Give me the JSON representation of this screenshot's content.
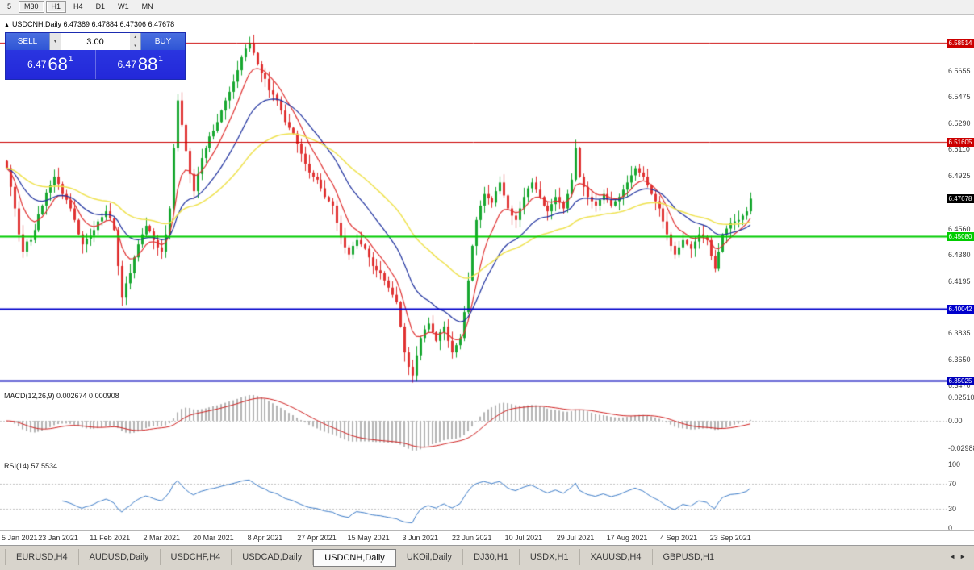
{
  "toolbar": {
    "timeframes": [
      {
        "label": "5",
        "style": ""
      },
      {
        "label": "M30",
        "style": "boxed"
      },
      {
        "label": "H1",
        "style": "boxed"
      },
      {
        "label": "H4",
        "style": ""
      },
      {
        "label": "D1",
        "style": ""
      },
      {
        "label": "W1",
        "style": ""
      },
      {
        "label": "MN",
        "style": ""
      }
    ]
  },
  "chart": {
    "toggle_glyph": "▲",
    "title": "USDCNH,Daily 6.47389 6.47884 6.47306 6.47678"
  },
  "trade_panel": {
    "sell_label": "SELL",
    "buy_label": "BUY",
    "volume": "3.00",
    "glyphs": {
      "dropdown": "▾",
      "spin_up": "▴",
      "spin_down": "▾"
    },
    "sell_price": {
      "base": "6.47",
      "big": "68",
      "pip": "1"
    },
    "buy_price": {
      "base": "6.47",
      "big": "88",
      "pip": "1"
    },
    "colors": {
      "button_bg": "#2f55d5",
      "price_bg": "#2328d9",
      "text": "#ffffff"
    }
  },
  "indicator_labels": {
    "macd": "MACD(12,26,9) 0.002674 0.000908",
    "rsi": "RSI(14) 57.5534"
  },
  "tabs": [
    {
      "label": "EURUSD,H4",
      "active": false
    },
    {
      "label": "AUDUSD,Daily",
      "active": false
    },
    {
      "label": "USDCHF,H4",
      "active": false
    },
    {
      "label": "USDCAD,Daily",
      "active": false
    },
    {
      "label": "USDCNH,Daily",
      "active": true
    },
    {
      "label": "UKOil,Daily",
      "active": false
    },
    {
      "label": "DJ30,H1",
      "active": false
    },
    {
      "label": "USDX,H1",
      "active": false
    },
    {
      "label": "XAUUSD,H4",
      "active": false
    },
    {
      "label": "GBPUSD,H1",
      "active": false
    }
  ],
  "tab_scroll": {
    "left": "◄",
    "right": "►"
  },
  "chart_data": {
    "type": "candlestick",
    "symbol": "USDCNH",
    "timeframe": "Daily",
    "title": "USDCNH,Daily",
    "current_ohlc": {
      "open": 6.47389,
      "high": 6.47884,
      "low": 6.47306,
      "close": 6.47678
    },
    "price_axis": {
      "ticks": [
        {
          "label": "6.5655",
          "price": 6.5655
        },
        {
          "label": "6.5475",
          "price": 6.5475
        },
        {
          "label": "6.5290",
          "price": 6.529
        },
        {
          "label": "6.5110",
          "price": 6.511
        },
        {
          "label": "6.4925",
          "price": 6.4925
        },
        {
          "label": "6.4560",
          "price": 6.456
        },
        {
          "label": "6.4380",
          "price": 6.438
        },
        {
          "label": "6.4195",
          "price": 6.4195
        },
        {
          "label": "6.3835",
          "price": 6.3835
        },
        {
          "label": "6.3650",
          "price": 6.365
        },
        {
          "label": "6.3470",
          "price": 6.347
        }
      ],
      "current": {
        "label": "6.47678",
        "price": 6.47678,
        "bg": "#000000"
      },
      "price_top": 6.592,
      "price_bottom": 6.344
    },
    "horizontal_levels": [
      {
        "label": "6.58514",
        "price": 6.58514,
        "color": "#cc0000",
        "width": 1
      },
      {
        "label": "6.51605",
        "price": 6.51605,
        "color": "#cc0000",
        "width": 1
      },
      {
        "label": "6.45080",
        "price": 6.4508,
        "color": "#00cc00",
        "width": 2
      },
      {
        "label": "6.40042",
        "price": 6.40042,
        "color": "#0000cc",
        "width": 2
      },
      {
        "label": "6.35025",
        "price": 6.35025,
        "color": "#0000bb",
        "width": 2
      }
    ],
    "x_labels": [
      {
        "label": "5 Jan 2021",
        "bar": 0
      },
      {
        "label": "23 Jan 2021",
        "bar": 13
      },
      {
        "label": "11 Feb 2021",
        "bar": 26
      },
      {
        "label": "2 Mar 2021",
        "bar": 39
      },
      {
        "label": "20 Mar 2021",
        "bar": 52
      },
      {
        "label": "8 Apr 2021",
        "bar": 65
      },
      {
        "label": "27 Apr 2021",
        "bar": 78
      },
      {
        "label": "15 May 2021",
        "bar": 91
      },
      {
        "label": "3 Jun 2021",
        "bar": 104
      },
      {
        "label": "22 Jun 2021",
        "bar": 117
      },
      {
        "label": "10 Jul 2021",
        "bar": 130
      },
      {
        "label": "29 Jul 2021",
        "bar": 143
      },
      {
        "label": "17 Aug 2021",
        "bar": 156
      },
      {
        "label": "4 Sep 2021",
        "bar": 169
      },
      {
        "label": "23 Sep 2021",
        "bar": 182
      }
    ],
    "closes": [
      6.498,
      6.485,
      6.47,
      6.452,
      6.44,
      6.447,
      6.448,
      6.455,
      6.466,
      6.472,
      6.481,
      6.486,
      6.492,
      6.487,
      6.48,
      6.476,
      6.47,
      6.462,
      6.452,
      6.445,
      6.449,
      6.451,
      6.455,
      6.461,
      6.464,
      6.468,
      6.463,
      6.455,
      6.43,
      6.408,
      6.418,
      6.425,
      6.436,
      6.445,
      6.452,
      6.458,
      6.454,
      6.448,
      6.443,
      6.44,
      6.452,
      6.47,
      6.512,
      6.545,
      6.528,
      6.51,
      6.494,
      6.482,
      6.494,
      6.505,
      6.512,
      6.52,
      6.524,
      6.53,
      6.538,
      6.545,
      6.551,
      6.558,
      6.566,
      6.575,
      6.581,
      6.585,
      6.578,
      6.57,
      6.564,
      6.56,
      6.552,
      6.549,
      6.545,
      6.538,
      6.53,
      6.526,
      6.522,
      6.515,
      6.508,
      6.501,
      6.495,
      6.492,
      6.49,
      6.484,
      6.478,
      6.475,
      6.472,
      6.46,
      6.45,
      6.443,
      6.438,
      6.444,
      6.448,
      6.445,
      6.442,
      6.436,
      6.43,
      6.427,
      6.425,
      6.42,
      6.415,
      6.41,
      6.405,
      6.388,
      6.37,
      6.36,
      6.354,
      6.368,
      6.38,
      6.386,
      6.39,
      6.384,
      6.378,
      6.384,
      6.388,
      6.378,
      6.37,
      6.375,
      6.38,
      6.398,
      6.42,
      6.444,
      6.462,
      6.472,
      6.48,
      6.477,
      6.474,
      6.482,
      6.488,
      6.479,
      6.47,
      6.465,
      6.462,
      6.47,
      6.478,
      6.484,
      6.488,
      6.483,
      6.478,
      6.472,
      6.468,
      6.473,
      6.478,
      6.474,
      6.47,
      6.48,
      6.49,
      6.512,
      6.492,
      6.485,
      6.478,
      6.475,
      6.472,
      6.476,
      6.48,
      6.476,
      6.472,
      6.475,
      6.478,
      6.483,
      6.488,
      6.493,
      6.498,
      6.495,
      6.492,
      6.486,
      6.48,
      6.475,
      6.47,
      6.461,
      6.452,
      6.444,
      6.438,
      6.443,
      6.448,
      6.445,
      6.442,
      6.447,
      6.452,
      6.45,
      6.448,
      6.437,
      6.428,
      6.44,
      6.452,
      6.456,
      6.46,
      6.461,
      6.462,
      6.465,
      6.468,
      6.4768
    ],
    "candle_colors": {
      "up": "#18a830",
      "down": "#e03232"
    },
    "moving_averages": [
      {
        "period": 8,
        "color": "#e03030"
      },
      {
        "period": 20,
        "color": "#1c2f9e"
      },
      {
        "period": 45,
        "color": "#efe24e"
      }
    ],
    "indicators": {
      "macd": {
        "name": "MACD",
        "params": [
          12,
          26,
          9
        ],
        "value_main": 0.002674,
        "value_signal": 0.000908,
        "histogram_color": "#b4b4b4",
        "signal_color": "#d02020",
        "ticks": [
          {
            "label": "0.02510",
            "v": 0.0251
          },
          {
            "label": "0.00",
            "v": 0
          },
          {
            "label": "-0.02988",
            "v": -0.02988
          }
        ]
      },
      "rsi": {
        "name": "RSI",
        "params": [
          14
        ],
        "value": 57.5534,
        "line_color": "#3b7bc8",
        "levels": [
          70,
          30
        ],
        "ticks": [
          {
            "label": "100",
            "v": 100
          },
          {
            "label": "70",
            "v": 70
          },
          {
            "label": "30",
            "v": 30
          },
          {
            "label": "0",
            "v": 0
          }
        ]
      }
    }
  }
}
